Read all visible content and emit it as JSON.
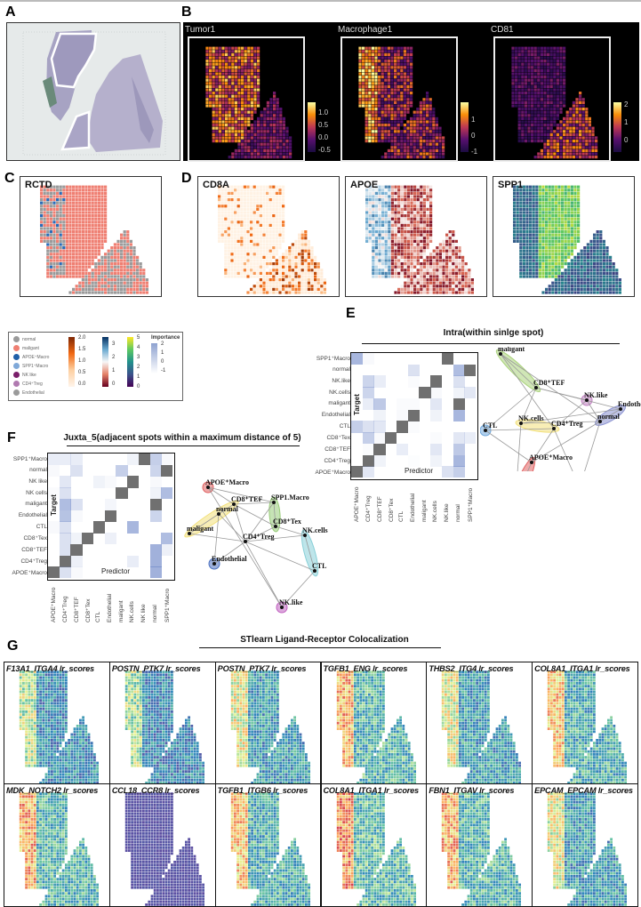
{
  "figure": {
    "panel_labels": [
      "A",
      "B",
      "C",
      "D",
      "E",
      "F",
      "G"
    ]
  },
  "panelB": {
    "subplots": [
      {
        "title": "Tumor1",
        "ticks": [
          "1.0",
          "0.5",
          "0.0",
          "-0.5"
        ]
      },
      {
        "title": "Macrophage1",
        "ticks": [
          "1",
          "0",
          "-1"
        ]
      },
      {
        "title": "CD81",
        "ticks": [
          "2",
          "1",
          "0"
        ]
      }
    ]
  },
  "panelC": {
    "title": "RCTD"
  },
  "panelD": {
    "titles": [
      "CD8A",
      "APOE",
      "SPP1"
    ]
  },
  "legend": {
    "cell_types": [
      {
        "label": "normal",
        "color": "#9a9a9a"
      },
      {
        "label": "maligant",
        "color": "#ef7f72"
      },
      {
        "label": "APOE⁺Macro",
        "color": "#1f5fa8"
      },
      {
        "label": "SPP1⁺Macro",
        "color": "#7fa8d8"
      },
      {
        "label": "NK like",
        "color": "#7a1f6a"
      },
      {
        "label": "CD4⁺Treg",
        "color": "#b07ab0"
      },
      {
        "label": "Endothelial",
        "color": "#9a9a9a"
      }
    ],
    "orange_scale_ticks": [
      "2.0",
      "1.5",
      "1.0",
      "0.5",
      "0.0"
    ],
    "rdbu_scale_ticks": [
      "3",
      "2",
      "1",
      "0"
    ],
    "viridis_scale_ticks": [
      "5",
      "4",
      "3",
      "2",
      "1",
      "0"
    ],
    "importance_title": "Importance",
    "importance_ticks": [
      "2",
      "1",
      "0",
      "-1"
    ]
  },
  "panelE": {
    "title": "Intra(within sinlge spot)",
    "heatmap": {
      "ylabel": "Target",
      "xlabel": "Predictor",
      "rows": [
        "SPP1⁺Macro",
        "normal",
        "NK.like",
        "NK.cells",
        "maligant",
        "Endothelial",
        "CTL",
        "CD8⁺Tex",
        "CD8⁺TEF",
        "CD4⁺Treg",
        "APOE⁺Macro"
      ],
      "cols": [
        "APOE⁺Macro",
        "CD4⁺Treg",
        "CD8⁺TEF",
        "CD8⁺Tex",
        "CTL",
        "Endothelial",
        "maligant",
        "NK.cells",
        "NK.like",
        "normal",
        "SPP1⁺Macro"
      ],
      "values": [
        [
          0.6,
          0.05,
          0,
          0,
          0,
          0,
          0,
          0,
          -9,
          0,
          0
        ],
        [
          0,
          0,
          0,
          0,
          0,
          0.25,
          0,
          0,
          0,
          0.55,
          -9
        ],
        [
          0,
          0.35,
          0.15,
          0,
          0,
          0.03,
          0,
          -9,
          0,
          0.25,
          0
        ],
        [
          0,
          0.35,
          0,
          0,
          0,
          0,
          -9,
          0.05,
          0,
          0.1,
          0.2
        ],
        [
          0,
          0.15,
          0.45,
          0,
          0.03,
          0.03,
          0,
          0.2,
          0,
          -9,
          0
        ],
        [
          0,
          0,
          0.1,
          0,
          0.05,
          -9,
          0,
          0.1,
          0,
          0.6,
          0
        ],
        [
          0.4,
          0.25,
          0.2,
          0,
          -9,
          0.03,
          0,
          0,
          0,
          0,
          0
        ],
        [
          0,
          0.4,
          0.05,
          -9,
          0,
          0,
          0,
          0.03,
          0,
          0.2,
          0.15
        ],
        [
          0,
          0.03,
          -9,
          0,
          0.15,
          0,
          0,
          0.2,
          0,
          0.45,
          0
        ],
        [
          0,
          -9,
          0.1,
          0,
          0,
          0.02,
          0,
          0.1,
          0,
          0.6,
          0
        ],
        [
          -9,
          0.2,
          0,
          0,
          0,
          0,
          0,
          0,
          0.25,
          0.4,
          0
        ]
      ]
    },
    "network": {
      "nodes": [
        {
          "label": "maligant",
          "color": "#a9d27a"
        },
        {
          "label": "CD8⁺TEF",
          "color": "#a9d27a"
        },
        {
          "label": "NK.like",
          "color": "#c080c0"
        },
        {
          "label": "Endothelial",
          "color": "#8890d0"
        },
        {
          "label": "normal",
          "color": "#8890d0"
        },
        {
          "label": "NK.cells",
          "color": "#f2e07a"
        },
        {
          "label": "CD4⁺Treg",
          "color": "#f2e07a"
        },
        {
          "label": "CTL",
          "color": "#6fa8dc"
        },
        {
          "label": "APOE⁺Macro",
          "color": "#e06060"
        },
        {
          "label": "SPP1⁺Macro",
          "color": "#e06060"
        },
        {
          "label": "CD8⁺Tex",
          "color": "#98d098"
        }
      ]
    }
  },
  "panelF": {
    "title": "Juxta_5(adjacent spots within a maximum distance of 5)",
    "heatmap": {
      "ylabel": "Target",
      "xlabel": "Predictor",
      "rows": [
        "SPP1⁺Macro",
        "normal",
        "NK like",
        "NK cells",
        "maligant",
        "Endothelial",
        "CTL",
        "CD8⁺Tex",
        "CD8⁺TEF",
        "CD4⁺Treg",
        "APOE⁺Macro"
      ],
      "cols": [
        "APOE⁺Macro",
        "CD4⁺Treg",
        "CD8⁺TEF",
        "CD8⁺Tex",
        "CTL",
        "Endothelial",
        "maligant",
        "NK.cells",
        "NK like",
        "normal",
        "SPP1⁺Macro"
      ],
      "values": [
        [
          0.15,
          0.15,
          0.15,
          0,
          0,
          0,
          0,
          0.1,
          -9,
          0.4,
          0.05
        ],
        [
          0.05,
          0,
          0.25,
          0,
          0,
          0,
          0.4,
          0,
          0,
          0.35,
          -9
        ],
        [
          0,
          0.2,
          0,
          0,
          0.1,
          0.05,
          0,
          -9,
          0,
          0.05,
          0
        ],
        [
          0.03,
          0.25,
          0,
          0,
          0,
          0,
          -9,
          0,
          0,
          0.1,
          0.55
        ],
        [
          0,
          0.55,
          0.25,
          0,
          0,
          0.08,
          0,
          0,
          0,
          -9,
          0
        ],
        [
          0,
          0.5,
          0.05,
          0,
          0,
          -9,
          0,
          0,
          0,
          0.35,
          0
        ],
        [
          0.05,
          0.25,
          0,
          0,
          -9,
          0,
          0,
          0.6,
          0,
          0,
          0
        ],
        [
          0,
          0.25,
          0.1,
          -9,
          0,
          0.12,
          0,
          0,
          0,
          0,
          0.55
        ],
        [
          0,
          0.25,
          -9,
          0,
          0,
          0,
          0,
          0,
          0,
          0.65,
          0.12
        ],
        [
          0,
          -9,
          0.12,
          0,
          0,
          0,
          0,
          0.15,
          0,
          0.65,
          0
        ],
        [
          -9,
          0.25,
          0.05,
          0,
          0,
          0,
          0,
          0,
          0,
          0.65,
          0
        ]
      ]
    },
    "network": {
      "nodes": [
        {
          "label": "APOE⁺Macro",
          "color": "#e06060"
        },
        {
          "label": "CD8⁺TEF",
          "color": "#f2e07a"
        },
        {
          "label": "SPP1.Macro",
          "color": "#98cc78"
        },
        {
          "label": "normal",
          "color": "#f2e07a"
        },
        {
          "label": "CD8⁺Tex",
          "color": "#98cc78"
        },
        {
          "label": "maligant",
          "color": "#f2e07a"
        },
        {
          "label": "CD4⁺Treg",
          "color": "#f2e07a"
        },
        {
          "label": "NK.cells",
          "color": "#88d0d8"
        },
        {
          "label": "Endothelial",
          "color": "#4a70c0"
        },
        {
          "label": "CTL",
          "color": "#88d0d8"
        },
        {
          "label": "NK.like",
          "color": "#c060c0"
        }
      ]
    }
  },
  "panelG": {
    "title": "STlearn Ligand-Receptor Colocalization",
    "plots": [
      "F13A1_ITGA4 lr_scores",
      "POSTN_PTK7 lr_scores",
      "POSTN_PTK7 lr_scores",
      "TGFB1_ENG lr_scores",
      "THBS2_ITG4 lr_scores",
      "COL8A1_ITGA1 lr_scores",
      "MDK_NOTCH2 lr_scores",
      "CCL18_CCR8 lr_scores",
      "TGFB1_ITGB6 lr_scores",
      "COL8A1_ITGA1 lr_scores",
      "FBN1_ITGAV lr_scores",
      "EPCAM_EPCAM lr_scores"
    ]
  }
}
